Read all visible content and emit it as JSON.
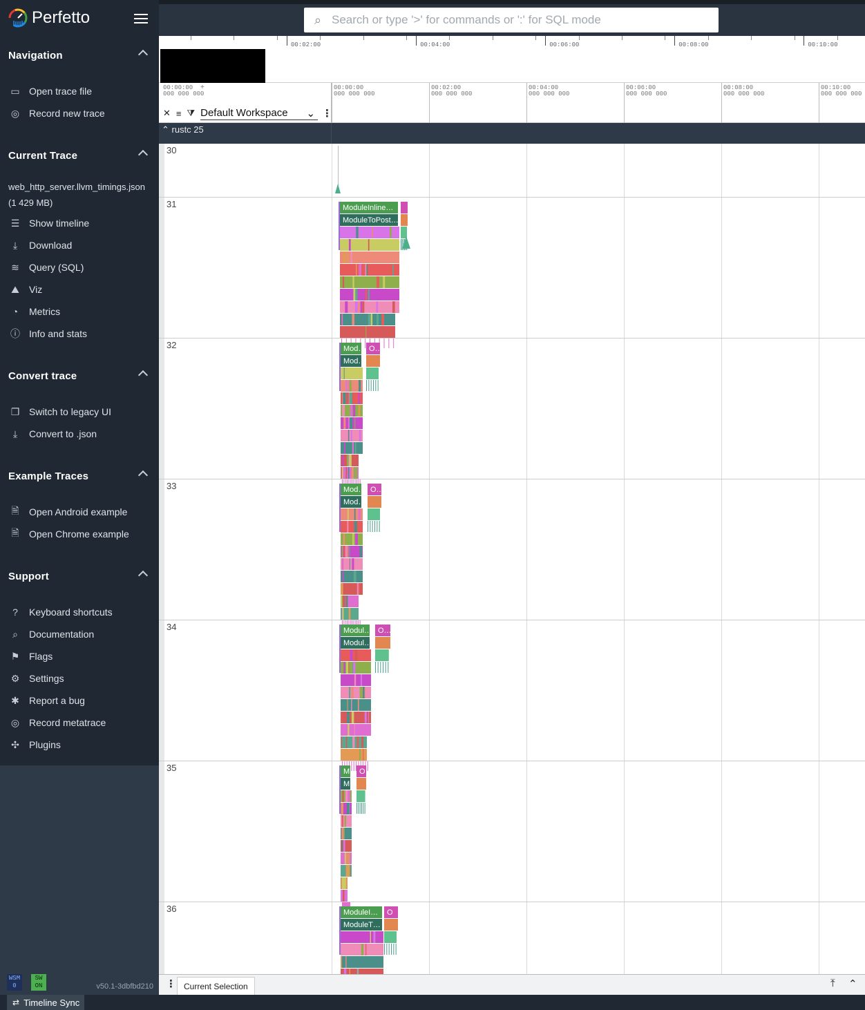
{
  "app": {
    "name": "Perfetto"
  },
  "search": {
    "placeholder": "Search or type '>' for commands or ':' for SQL mode"
  },
  "sidebar": {
    "sections": [
      {
        "title": "Navigation",
        "items": [
          {
            "label": "Open trace file",
            "icon": "folder-open-icon",
            "glyph": "▭"
          },
          {
            "label": "Record new trace",
            "icon": "record-icon",
            "glyph": "◎"
          }
        ]
      },
      {
        "title": "Current Trace",
        "trace_name": "web_http_server.llvm_timings.json (1 429 MB)",
        "items": [
          {
            "label": "Show timeline",
            "icon": "timeline-icon",
            "glyph": "☰"
          },
          {
            "label": "Download",
            "icon": "download-icon",
            "glyph": "⤓"
          },
          {
            "label": "Query (SQL)",
            "icon": "database-icon",
            "glyph": "≋"
          },
          {
            "label": "Viz",
            "icon": "chart-icon",
            "glyph": "⛰"
          },
          {
            "label": "Metrics",
            "icon": "speedometer-icon",
            "glyph": "◔"
          },
          {
            "label": "Info and stats",
            "icon": "info-icon",
            "glyph": "ⓘ"
          }
        ]
      },
      {
        "title": "Convert trace",
        "items": [
          {
            "label": "Switch to legacy UI",
            "icon": "filter-none-icon",
            "glyph": "❐"
          },
          {
            "label": "Convert to .json",
            "icon": "download-icon",
            "glyph": "⤓"
          }
        ]
      },
      {
        "title": "Example Traces",
        "items": [
          {
            "label": "Open Android example",
            "icon": "description-icon",
            "glyph": "🗎"
          },
          {
            "label": "Open Chrome example",
            "icon": "description-icon",
            "glyph": "🗎"
          }
        ]
      },
      {
        "title": "Support",
        "items": [
          {
            "label": "Keyboard shortcuts",
            "icon": "help-icon",
            "glyph": "?"
          },
          {
            "label": "Documentation",
            "icon": "find-in-page-icon",
            "glyph": "⌕"
          },
          {
            "label": "Flags",
            "icon": "flag-icon",
            "glyph": "⚑"
          },
          {
            "label": "Settings",
            "icon": "settings-icon",
            "glyph": "⚙"
          },
          {
            "label": "Report a bug",
            "icon": "bug-icon",
            "glyph": "✱"
          },
          {
            "label": "Record metatrace",
            "icon": "record-icon",
            "glyph": "◎"
          },
          {
            "label": "Plugins",
            "icon": "extension-icon",
            "glyph": "✣"
          }
        ]
      }
    ],
    "wsm_chip": {
      "line1": "WSM",
      "line2": "0",
      "color": "#1e2f5a",
      "text_color": "#8ab4ff"
    },
    "sw_chip": {
      "line1": "SW",
      "line2": "ON",
      "color": "#4caf50",
      "text_color": "#0b2a0b"
    },
    "version": "v50.1-3dbfbd210"
  },
  "statusbar": {
    "timeline_sync": "Timeline Sync"
  },
  "overview": {
    "labels": [
      "00:02:00",
      "00:04:00",
      "00:06:00",
      "00:08:00",
      "00:10:00"
    ]
  },
  "header": {
    "start_label": [
      "00:00:00",
      "000 000 000"
    ],
    "plus": "+",
    "workspace": "Default Workspace",
    "tick_labels": [
      [
        "00:00:00",
        "000 000 000"
      ],
      [
        "00:02:00",
        "000 000 000"
      ],
      [
        "00:04:00",
        "000 000 000"
      ],
      [
        "00:06:00",
        "000 000 000"
      ],
      [
        "00:08:00",
        "000 000 000"
      ],
      [
        "00:10:00",
        "000 000 000"
      ]
    ]
  },
  "group": {
    "name": "rustc 25"
  },
  "tracks": [
    {
      "name": "30",
      "labels": []
    },
    {
      "name": "31",
      "labels": [
        "ModuleInline…",
        "ModuleToPost…"
      ]
    },
    {
      "name": "32",
      "labels": [
        "Mod…",
        "O…",
        "Mod…"
      ]
    },
    {
      "name": "33",
      "labels": [
        "Mod…",
        "O…",
        "Mod…"
      ]
    },
    {
      "name": "34",
      "labels": [
        "Modul…",
        "O…",
        "Modul…"
      ]
    },
    {
      "name": "35",
      "labels": [
        "M…",
        "O",
        "M…"
      ]
    },
    {
      "name": "36",
      "labels": [
        "ModuleI…",
        "O",
        "ModuleT…"
      ]
    }
  ],
  "drawer": {
    "tab": "Current Selection"
  },
  "colors": {
    "sidebar": "#1f2833",
    "sidebar_footer": "#2f3a48",
    "slice_green": "#4b9e4f",
    "slice_teal": "#2f6e5c",
    "slice_magenta": "#d04fb2"
  }
}
